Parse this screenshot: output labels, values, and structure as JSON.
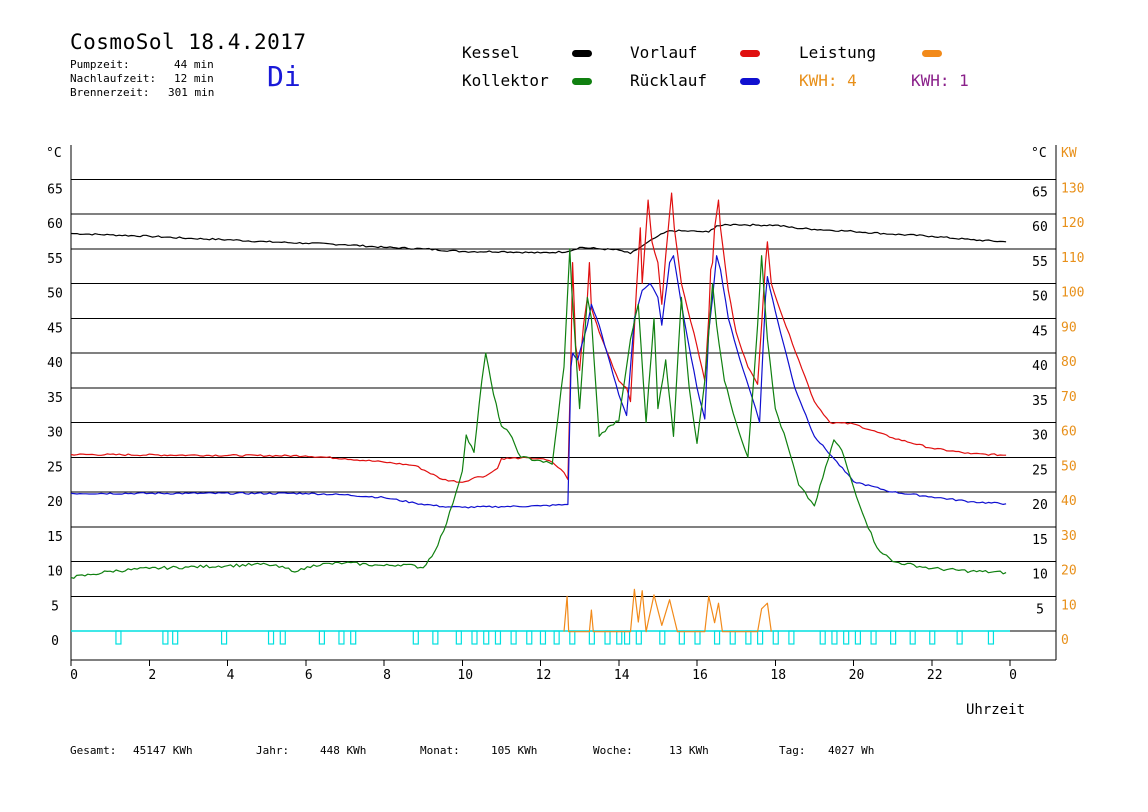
{
  "header": {
    "title": "CosmoSol 18.4.2017",
    "weekday": "Di",
    "info": [
      {
        "label": "Pumpzeit:",
        "value": "44 min"
      },
      {
        "label": "Nachlaufzeit:",
        "value": "12 min"
      },
      {
        "label": "Brennerzeit:",
        "value": "301 min"
      }
    ]
  },
  "legend": {
    "kessel": {
      "label": "Kessel",
      "color": "#000000"
    },
    "vorlauf": {
      "label": "Vorlauf",
      "color": "#e01010"
    },
    "leistung": {
      "label": "Leistung",
      "color": "#f28a1a"
    },
    "kollektor": {
      "label": "Kollektor",
      "color": "#108010"
    },
    "ruecklauf": {
      "label": "Rücklauf",
      "color": "#1010d0"
    },
    "kwh1": {
      "label": "KWH: 4",
      "color": "#e8901a"
    },
    "kwh2": {
      "label": "KWH: 1",
      "color": "#8a208a"
    }
  },
  "footer": {
    "gesamt": {
      "label": "Gesamt:",
      "value": "45147 KWh"
    },
    "jahr": {
      "label": "Jahr:",
      "value": "448 KWh"
    },
    "monat": {
      "label": "Monat:",
      "value": "105 KWh"
    },
    "woche": {
      "label": "Woche:",
      "value": "13 KWh"
    },
    "tag": {
      "label": "Tag:",
      "value": "4027 Wh"
    }
  },
  "chart_data": {
    "type": "line",
    "xlabel": "Uhrzeit",
    "ylabel_left": "°C",
    "ylabel_right_c": "°C",
    "ylabel_right_kw": "KW",
    "xlim": [
      0,
      24
    ],
    "ylim": [
      -4,
      70
    ],
    "grid": "horizontal",
    "x_ticks": [
      "0",
      "2",
      "4",
      "6",
      "8",
      "10",
      "12",
      "14",
      "16",
      "18",
      "20",
      "22",
      "0"
    ],
    "y_ticks_left": [
      0,
      5,
      10,
      15,
      20,
      25,
      30,
      35,
      40,
      45,
      50,
      55,
      60,
      65
    ],
    "y_ticks_right_c": [
      5,
      10,
      15,
      20,
      25,
      30,
      35,
      40,
      45,
      50,
      55,
      60,
      65
    ],
    "y_ticks_right_kw": [
      0,
      10,
      20,
      30,
      40,
      50,
      60,
      70,
      80,
      90,
      100,
      110,
      120,
      130
    ],
    "series": [
      {
        "name": "Kessel",
        "color": "#000000",
        "points": [
          [
            0,
            57.2
          ],
          [
            1,
            57
          ],
          [
            2,
            56.8
          ],
          [
            3,
            56.5
          ],
          [
            4,
            56.3
          ],
          [
            5,
            56
          ],
          [
            6,
            55.8
          ],
          [
            7,
            55.6
          ],
          [
            8,
            55.2
          ],
          [
            9,
            55
          ],
          [
            10,
            54.6
          ],
          [
            11,
            54.6
          ],
          [
            12,
            54.4
          ],
          [
            12.7,
            54.6
          ],
          [
            13,
            55.2
          ],
          [
            13.5,
            55
          ],
          [
            14,
            54.8
          ],
          [
            14.3,
            54.3
          ],
          [
            14.6,
            55.4
          ],
          [
            15,
            56.8
          ],
          [
            15.3,
            57.6
          ],
          [
            16,
            57.5
          ],
          [
            16.3,
            57.4
          ],
          [
            16.5,
            58.3
          ],
          [
            17,
            58.5
          ],
          [
            17.5,
            58.4
          ],
          [
            18,
            58.4
          ],
          [
            18.5,
            58
          ],
          [
            19,
            57.8
          ],
          [
            20,
            57.5
          ],
          [
            21,
            57.1
          ],
          [
            22,
            56.8
          ],
          [
            23,
            56.3
          ],
          [
            23.9,
            56
          ]
        ]
      },
      {
        "name": "Vorlauf",
        "color": "#e01010",
        "points": [
          [
            0,
            25.4
          ],
          [
            3,
            25.3
          ],
          [
            6,
            25.2
          ],
          [
            7,
            24.8
          ],
          [
            8,
            24.3
          ],
          [
            8.8,
            23.8
          ],
          [
            9.5,
            21.8
          ],
          [
            10,
            21.4
          ],
          [
            10.4,
            22.2
          ],
          [
            10.6,
            22.3
          ],
          [
            10.9,
            23.4
          ],
          [
            11,
            24.8
          ],
          [
            11.5,
            24.9
          ],
          [
            12,
            24.8
          ],
          [
            12.3,
            24.3
          ],
          [
            12.6,
            22.8
          ],
          [
            12.7,
            21.8
          ],
          [
            12.78,
            40
          ],
          [
            12.82,
            53
          ],
          [
            12.9,
            41
          ],
          [
            13,
            37.5
          ],
          [
            13.1,
            44
          ],
          [
            13.2,
            48
          ],
          [
            13.25,
            53
          ],
          [
            13.3,
            46.5
          ],
          [
            13.5,
            43
          ],
          [
            14,
            36
          ],
          [
            14.2,
            35
          ],
          [
            14.3,
            33
          ],
          [
            14.45,
            49
          ],
          [
            14.55,
            58
          ],
          [
            14.6,
            50
          ],
          [
            14.75,
            62
          ],
          [
            14.85,
            56
          ],
          [
            15,
            53
          ],
          [
            15.1,
            47
          ],
          [
            15.2,
            54
          ],
          [
            15.25,
            57
          ],
          [
            15.3,
            60
          ],
          [
            15.35,
            63
          ],
          [
            15.42,
            58
          ],
          [
            15.6,
            50
          ],
          [
            16,
            41
          ],
          [
            16.2,
            36
          ],
          [
            16.3,
            45
          ],
          [
            16.35,
            52
          ],
          [
            16.4,
            53
          ],
          [
            16.45,
            58
          ],
          [
            16.5,
            60
          ],
          [
            16.55,
            62
          ],
          [
            16.6,
            58
          ],
          [
            16.8,
            49
          ],
          [
            17,
            43
          ],
          [
            17.3,
            38
          ],
          [
            17.55,
            35.5
          ],
          [
            17.65,
            44
          ],
          [
            17.75,
            53
          ],
          [
            17.8,
            56
          ],
          [
            17.9,
            50
          ],
          [
            18.2,
            45
          ],
          [
            18.6,
            39
          ],
          [
            19,
            33
          ],
          [
            19.4,
            30
          ],
          [
            20,
            29.8
          ],
          [
            21,
            27.8
          ],
          [
            22,
            26.3
          ],
          [
            23,
            25.5
          ],
          [
            23.9,
            25.3
          ]
        ]
      },
      {
        "name": "Rücklauf",
        "color": "#1010d0",
        "points": [
          [
            0,
            19.8
          ],
          [
            3,
            19.8
          ],
          [
            6,
            19.8
          ],
          [
            7,
            19.6
          ],
          [
            8,
            19.2
          ],
          [
            8.8,
            18.4
          ],
          [
            9.5,
            17.9
          ],
          [
            10,
            17.8
          ],
          [
            11,
            17.9
          ],
          [
            12,
            18
          ],
          [
            12.7,
            18.2
          ],
          [
            12.78,
            38
          ],
          [
            12.82,
            40
          ],
          [
            12.95,
            39
          ],
          [
            13.1,
            42
          ],
          [
            13.2,
            44
          ],
          [
            13.3,
            47
          ],
          [
            13.5,
            44
          ],
          [
            14,
            34
          ],
          [
            14.2,
            31
          ],
          [
            14.4,
            45
          ],
          [
            14.6,
            49
          ],
          [
            14.8,
            50
          ],
          [
            15,
            48
          ],
          [
            15.1,
            44
          ],
          [
            15.3,
            53
          ],
          [
            15.4,
            54
          ],
          [
            15.6,
            47
          ],
          [
            16,
            35
          ],
          [
            16.2,
            30.5
          ],
          [
            16.3,
            43
          ],
          [
            16.4,
            48
          ],
          [
            16.5,
            54
          ],
          [
            16.6,
            52
          ],
          [
            16.8,
            45
          ],
          [
            17.1,
            39
          ],
          [
            17.5,
            32
          ],
          [
            17.6,
            30
          ],
          [
            17.75,
            48
          ],
          [
            17.8,
            51
          ],
          [
            18,
            46
          ],
          [
            18.5,
            35
          ],
          [
            19,
            28
          ],
          [
            19.5,
            24.8
          ],
          [
            20,
            21.5
          ],
          [
            21,
            20
          ],
          [
            22,
            19.3
          ],
          [
            23,
            18.6
          ],
          [
            23.9,
            18.3
          ]
        ]
      },
      {
        "name": "Kollektor",
        "color": "#108010",
        "points": [
          [
            0,
            7.7
          ],
          [
            0.5,
            8.1
          ],
          [
            1,
            8.6
          ],
          [
            2,
            9
          ],
          [
            3,
            9.2
          ],
          [
            4,
            9.4
          ],
          [
            5,
            9.6
          ],
          [
            5.8,
            8.6
          ],
          [
            6.2,
            9.5
          ],
          [
            7,
            9.8
          ],
          [
            8,
            9.4
          ],
          [
            8.5,
            9.6
          ],
          [
            9,
            9.1
          ],
          [
            9.3,
            11.5
          ],
          [
            9.6,
            15.5
          ],
          [
            10,
            23
          ],
          [
            10.1,
            28.2
          ],
          [
            10.3,
            25.7
          ],
          [
            10.5,
            36
          ],
          [
            10.6,
            40
          ],
          [
            10.8,
            34
          ],
          [
            11,
            29.5
          ],
          [
            11.2,
            28.5
          ],
          [
            11.5,
            25
          ],
          [
            12,
            24.5
          ],
          [
            12.3,
            24
          ],
          [
            12.6,
            38
          ],
          [
            12.75,
            55
          ],
          [
            12.8,
            49
          ],
          [
            13,
            32
          ],
          [
            13.2,
            48
          ],
          [
            13.3,
            45
          ],
          [
            13.5,
            28
          ],
          [
            13.8,
            29.6
          ],
          [
            14,
            30.2
          ],
          [
            14.3,
            42
          ],
          [
            14.5,
            47
          ],
          [
            14.7,
            30
          ],
          [
            14.9,
            45
          ],
          [
            15,
            32
          ],
          [
            15.2,
            39
          ],
          [
            15.4,
            28
          ],
          [
            15.6,
            48
          ],
          [
            15.8,
            35
          ],
          [
            16,
            27
          ],
          [
            16.2,
            36
          ],
          [
            16.4,
            50
          ],
          [
            16.5,
            44
          ],
          [
            16.7,
            36
          ],
          [
            17,
            30
          ],
          [
            17.3,
            25
          ],
          [
            17.55,
            44
          ],
          [
            17.65,
            54
          ],
          [
            17.8,
            42
          ],
          [
            18,
            32
          ],
          [
            18.3,
            27
          ],
          [
            18.6,
            21
          ],
          [
            19,
            18
          ],
          [
            19.5,
            27.5
          ],
          [
            19.7,
            26
          ],
          [
            20,
            20.7
          ],
          [
            20.3,
            16
          ],
          [
            20.6,
            12
          ],
          [
            21,
            10
          ],
          [
            22,
            9
          ],
          [
            23,
            8.6
          ],
          [
            23.9,
            8.4
          ]
        ]
      },
      {
        "name": "Leistung",
        "color": "#f28a1a",
        "points": [
          [
            12.6,
            -0.1
          ],
          [
            12.68,
            5
          ],
          [
            12.72,
            -0.1
          ],
          [
            13.25,
            -0.1
          ],
          [
            13.3,
            3
          ],
          [
            13.35,
            -0.1
          ],
          [
            14.3,
            -0.1
          ],
          [
            14.4,
            6
          ],
          [
            14.5,
            1.3
          ],
          [
            14.6,
            5.8
          ],
          [
            14.7,
            -0.1
          ],
          [
            14.9,
            5.2
          ],
          [
            15.1,
            0.8
          ],
          [
            15.3,
            4.5
          ],
          [
            15.5,
            -0.1
          ],
          [
            16.2,
            -0.1
          ],
          [
            16.3,
            5
          ],
          [
            16.45,
            1.2
          ],
          [
            16.55,
            4
          ],
          [
            16.65,
            -0.1
          ],
          [
            17.55,
            -0.1
          ],
          [
            17.65,
            3.2
          ],
          [
            17.8,
            4
          ],
          [
            17.9,
            -0.1
          ]
        ]
      },
      {
        "name": "Pumpe",
        "color": "#00e0e0",
        "points": [
          [
            0,
            0
          ],
          [
            24,
            0
          ]
        ]
      }
    ],
    "pump_pulses": [
      1.2,
      2.4,
      2.65,
      3.9,
      5.1,
      5.4,
      6.4,
      6.9,
      7.2,
      8.8,
      9.3,
      9.9,
      10.3,
      10.6,
      10.9,
      11.3,
      11.7,
      12.05,
      12.4,
      12.8,
      13.3,
      13.7,
      14.0,
      14.2,
      14.5,
      15.1,
      15.6,
      16.0,
      16.5,
      16.9,
      17.3,
      17.6,
      18.0,
      18.4,
      19.2,
      19.5,
      19.8,
      20.1,
      20.5,
      21.0,
      21.5,
      22.0,
      22.7,
      23.5
    ]
  }
}
